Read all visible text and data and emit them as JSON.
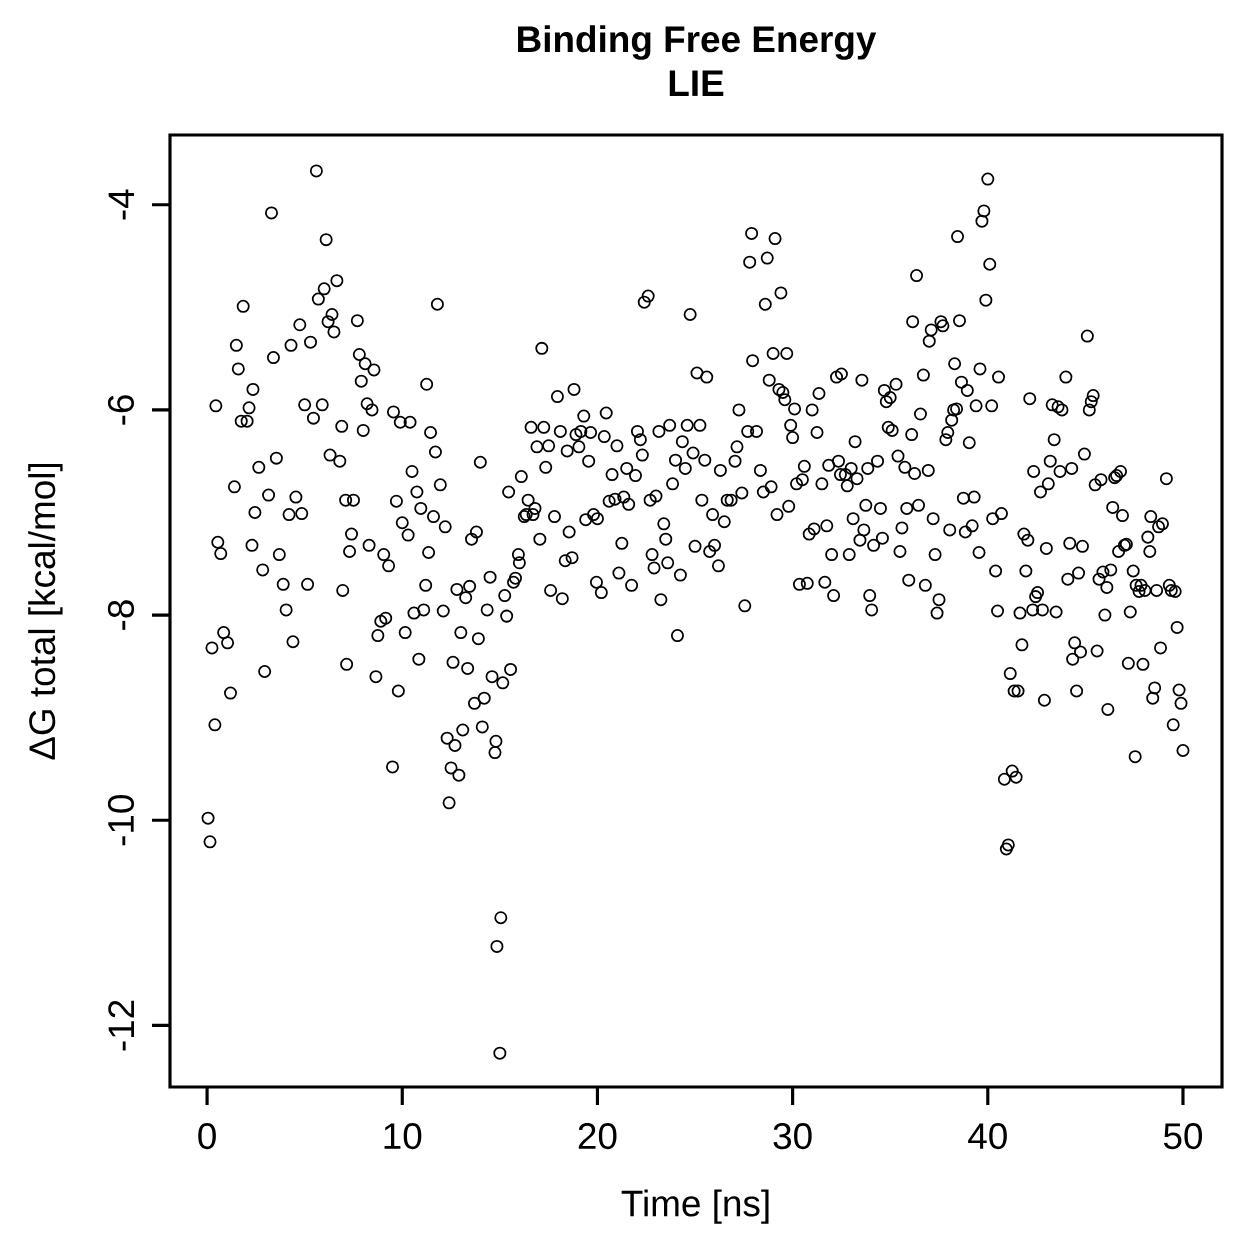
{
  "chart_data": {
    "type": "scatter",
    "title": "Binding Free Energy",
    "subtitle": "LIE",
    "xlabel": "Time [ns]",
    "ylabel": "ΔG total [kcal/mol]",
    "xlim": [
      -1.9,
      52.0
    ],
    "ylim": [
      -12.6,
      -3.32
    ],
    "xticks": [
      0,
      10,
      20,
      30,
      40,
      50
    ],
    "yticks": [
      -12,
      -10,
      -8,
      -6,
      -4
    ],
    "marker": "circle",
    "color": "#000000",
    "x": [
      0.05,
      0.15,
      0.25,
      0.4,
      0.45,
      0.55,
      0.7,
      0.85,
      1.05,
      1.2,
      1.4,
      1.5,
      1.6,
      1.75,
      1.85,
      2.05,
      2.15,
      2.35,
      2.3,
      2.45,
      2.65,
      2.85,
      2.95,
      3.15,
      3.3,
      3.4,
      3.55,
      3.7,
      3.9,
      4.05,
      4.2,
      4.3,
      4.4,
      4.55,
      4.75,
      4.85,
      5.0,
      5.15,
      5.3,
      5.45,
      5.6,
      5.7,
      5.9,
      6.0,
      6.1,
      6.2,
      6.3,
      6.4,
      6.5,
      6.65,
      6.8,
      6.9,
      6.95,
      7.1,
      7.15,
      7.3,
      7.4,
      7.5,
      7.7,
      7.8,
      7.9,
      8.0,
      8.1,
      8.2,
      8.3,
      8.45,
      8.55,
      8.65,
      8.75,
      8.9,
      9.05,
      9.15,
      9.3,
      9.5,
      9.55,
      9.7,
      9.8,
      9.9,
      10.0,
      10.15,
      10.3,
      10.4,
      10.5,
      10.6,
      10.75,
      10.85,
      10.95,
      11.1,
      11.2,
      11.25,
      11.35,
      11.45,
      11.6,
      11.7,
      11.8,
      11.95,
      12.1,
      12.2,
      12.3,
      12.4,
      12.5,
      12.6,
      12.7,
      12.8,
      12.9,
      13.0,
      13.1,
      13.25,
      13.35,
      13.45,
      13.55,
      13.7,
      13.8,
      13.9,
      14.0,
      14.1,
      14.2,
      14.35,
      14.5,
      14.6,
      14.75,
      14.8,
      14.85,
      15.0,
      15.05,
      15.15,
      15.25,
      15.35,
      15.45,
      15.55,
      15.7,
      15.8,
      15.95,
      16.0,
      16.1,
      16.25,
      16.35,
      16.45,
      16.6,
      16.7,
      16.8,
      16.9,
      17.05,
      17.15,
      17.25,
      17.35,
      17.5,
      17.6,
      17.8,
      17.95,
      18.1,
      18.2,
      18.35,
      18.45,
      18.55,
      18.7,
      18.8,
      18.9,
      19.05,
      19.15,
      19.3,
      19.4,
      19.55,
      19.65,
      19.8,
      19.95,
      20.0,
      20.2,
      20.35,
      20.45,
      20.6,
      20.75,
      20.9,
      21.0,
      21.1,
      21.25,
      21.35,
      21.5,
      21.6,
      21.75,
      21.95,
      22.05,
      22.2,
      22.3,
      22.4,
      22.6,
      22.7,
      22.8,
      22.9,
      23.0,
      23.15,
      23.25,
      23.4,
      23.5,
      23.6,
      23.7,
      23.85,
      24.0,
      24.1,
      24.25,
      24.35,
      24.5,
      24.6,
      24.75,
      24.9,
      25.0,
      25.1,
      25.25,
      25.35,
      25.5,
      25.6,
      25.75,
      25.9,
      26.0,
      26.2,
      26.3,
      26.5,
      26.65,
      26.85,
      27.05,
      27.15,
      27.25,
      27.4,
      27.55,
      27.7,
      27.8,
      27.9,
      27.95,
      28.15,
      28.35,
      28.5,
      28.6,
      28.7,
      28.8,
      28.9,
      29.0,
      29.1,
      29.2,
      29.3,
      29.4,
      29.5,
      29.6,
      29.7,
      29.8,
      29.9,
      30.0,
      30.1,
      30.2,
      30.35,
      30.5,
      30.6,
      30.75,
      30.85,
      31.0,
      31.1,
      31.25,
      31.35,
      31.5,
      31.65,
      31.75,
      31.85,
      32.0,
      32.1,
      32.25,
      32.35,
      32.45,
      32.5,
      32.7,
      32.8,
      32.9,
      33.0,
      33.1,
      33.2,
      33.3,
      33.45,
      33.55,
      33.65,
      33.75,
      33.85,
      33.95,
      34.05,
      34.15,
      34.35,
      34.5,
      34.6,
      34.7,
      34.8,
      34.9,
      35.0,
      35.1,
      35.3,
      35.4,
      35.5,
      35.6,
      35.75,
      35.85,
      35.95,
      36.1,
      36.15,
      36.25,
      36.35,
      36.45,
      36.55,
      36.7,
      36.8,
      36.95,
      37.0,
      37.1,
      37.2,
      37.3,
      37.4,
      37.5,
      37.6,
      37.7,
      37.85,
      37.95,
      38.05,
      38.15,
      38.25,
      38.3,
      38.4,
      38.45,
      38.55,
      38.65,
      38.75,
      38.85,
      38.95,
      39.05,
      39.2,
      39.3,
      39.4,
      39.55,
      39.6,
      39.7,
      39.8,
      39.9,
      40.0,
      40.1,
      40.2,
      40.25,
      40.4,
      40.5,
      40.55,
      40.7,
      40.85,
      40.95,
      41.05,
      41.15,
      41.25,
      41.35,
      41.45,
      41.55,
      41.65,
      41.75,
      41.85,
      41.95,
      42.05,
      42.15,
      42.3,
      42.35,
      42.45,
      42.55,
      42.7,
      42.8,
      42.9,
      43.0,
      43.1,
      43.2,
      43.3,
      43.4,
      43.5,
      43.6,
      43.7,
      43.8,
      44.0,
      44.1,
      44.2,
      44.3,
      44.35,
      44.45,
      44.55,
      44.65,
      44.75,
      44.85,
      44.95,
      45.1,
      45.2,
      45.3,
      45.4,
      45.5,
      45.6,
      45.7,
      45.8,
      45.9,
      46.0,
      46.1,
      46.15,
      46.3,
      46.4,
      46.5,
      46.6,
      46.7,
      46.8,
      46.9,
      47.0,
      47.1,
      47.2,
      47.3,
      47.45,
      47.55,
      47.6,
      47.75,
      47.85,
      47.95,
      48.05,
      48.2,
      48.3,
      48.35,
      48.45,
      48.55,
      48.65,
      48.75,
      48.85,
      48.95,
      49.15,
      49.3,
      49.4,
      49.5,
      49.6,
      49.7,
      49.8,
      49.9,
      50.0
    ],
    "values": [
      -9.98,
      -10.21,
      -8.32,
      -9.07,
      -5.96,
      -7.29,
      -7.4,
      -8.17,
      -8.27,
      -8.76,
      -6.75,
      -5.37,
      -5.6,
      -6.11,
      -4.99,
      -6.11,
      -5.98,
      -5.8,
      -7.32,
      -7.0,
      -6.56,
      -7.56,
      -8.55,
      -6.83,
      -4.08,
      -5.49,
      -6.47,
      -7.41,
      -7.7,
      -7.95,
      -7.02,
      -5.37,
      -8.26,
      -6.85,
      -5.17,
      -7.01,
      -5.95,
      -7.7,
      -5.34,
      -6.08,
      -3.67,
      -4.92,
      -5.95,
      -4.82,
      -4.34,
      -5.14,
      -6.44,
      -5.07,
      -5.24,
      -4.74,
      -6.5,
      -6.16,
      -7.76,
      -6.88,
      -8.48,
      -7.38,
      -7.21,
      -6.88,
      -5.13,
      -5.46,
      -5.72,
      -6.2,
      -5.55,
      -5.94,
      -7.32,
      -6.0,
      -5.61,
      -8.6,
      -8.2,
      -8.06,
      -7.41,
      -8.03,
      -7.52,
      -9.48,
      -6.02,
      -6.89,
      -8.74,
      -6.12,
      -7.1,
      -8.17,
      -7.22,
      -6.12,
      -6.6,
      -7.98,
      -6.8,
      -8.43,
      -6.96,
      -7.95,
      -7.71,
      -5.75,
      -7.39,
      -6.22,
      -7.04,
      -6.41,
      -4.97,
      -6.73,
      -7.96,
      -7.14,
      -9.2,
      -9.83,
      -9.49,
      -8.46,
      -9.27,
      -7.75,
      -9.56,
      -8.17,
      -9.12,
      -7.83,
      -8.52,
      -7.72,
      -7.26,
      -8.86,
      -7.19,
      -8.23,
      -6.51,
      -9.09,
      -8.81,
      -7.95,
      -7.63,
      -8.6,
      -9.34,
      -9.23,
      -11.23,
      -12.27,
      -10.95,
      -8.66,
      -7.81,
      -8.01,
      -6.8,
      -8.53,
      -7.68,
      -7.64,
      -7.41,
      -7.49,
      -6.65,
      -7.04,
      -7.02,
      -6.88,
      -6.17,
      -7.02,
      -6.96,
      -6.36,
      -7.26,
      -5.4,
      -6.17,
      -6.56,
      -6.35,
      -7.76,
      -7.04,
      -5.87,
      -6.21,
      -7.84,
      -7.47,
      -6.4,
      -7.19,
      -7.44,
      -5.8,
      -6.24,
      -6.36,
      -6.21,
      -6.06,
      -7.07,
      -6.5,
      -6.22,
      -7.02,
      -7.68,
      -7.06,
      -7.78,
      -6.26,
      -6.03,
      -6.89,
      -6.63,
      -6.87,
      -6.35,
      -7.59,
      -7.3,
      -6.85,
      -6.57,
      -6.92,
      -7.71,
      -6.64,
      -6.21,
      -6.29,
      -6.44,
      -4.95,
      -4.89,
      -6.88,
      -7.41,
      -7.54,
      -6.84,
      -6.21,
      -7.85,
      -7.11,
      -7.26,
      -7.49,
      -6.15,
      -6.72,
      -6.49,
      -8.2,
      -7.61,
      -6.31,
      -6.57,
      -6.15,
      -5.07,
      -6.42,
      -7.33,
      -5.64,
      -6.15,
      -6.88,
      -6.49,
      -5.68,
      -7.38,
      -7.02,
      -7.32,
      -7.52,
      -6.59,
      -7.09,
      -6.88,
      -6.88,
      -6.5,
      -6.36,
      -6.0,
      -6.81,
      -7.91,
      -6.21,
      -4.56,
      -4.28,
      -5.52,
      -6.21,
      -6.59,
      -6.8,
      -4.97,
      -4.52,
      -5.71,
      -6.75,
      -5.45,
      -4.33,
      -7.02,
      -5.8,
      -4.86,
      -5.83,
      -5.9,
      -5.45,
      -6.94,
      -6.15,
      -6.27,
      -5.99,
      -6.72,
      -7.7,
      -6.68,
      -6.55,
      -7.69,
      -7.21,
      -6.0,
      -7.16,
      -6.22,
      -5.84,
      -6.72,
      -7.68,
      -7.13,
      -6.54,
      -7.41,
      -7.81,
      -5.68,
      -6.5,
      -6.63,
      -5.65,
      -6.63,
      -6.74,
      -7.41,
      -6.57,
      -7.06,
      -6.31,
      -6.67,
      -7.27,
      -5.71,
      -7.17,
      -6.93,
      -6.57,
      -7.81,
      -7.95,
      -7.32,
      -6.5,
      -6.96,
      -7.25,
      -5.81,
      -5.92,
      -6.17,
      -5.88,
      -6.2,
      -5.75,
      -6.45,
      -7.38,
      -7.15,
      -6.56,
      -6.96,
      -7.66,
      -6.24,
      -5.14,
      -6.62,
      -4.69,
      -6.93,
      -6.04,
      -5.66,
      -7.71,
      -6.59,
      -5.33,
      -5.22,
      -7.06,
      -7.41,
      -7.98,
      -7.85,
      -5.14,
      -5.18,
      -6.29,
      -6.22,
      -7.17,
      -6.1,
      -6.0,
      -5.55,
      -5.99,
      -4.31,
      -5.13,
      -5.73,
      -6.86,
      -7.19,
      -5.81,
      -6.32,
      -7.13,
      -6.85,
      -5.96,
      -7.39,
      -5.6,
      -4.16,
      -4.06,
      -4.93,
      -3.75,
      -4.58,
      -5.96,
      -7.06,
      -7.57,
      -7.96,
      -5.68,
      -7.01,
      -9.6,
      -10.28,
      -10.24,
      -8.57,
      -9.52,
      -8.74,
      -9.58,
      -8.74,
      -7.98,
      -8.29,
      -7.21,
      -7.57,
      -7.27,
      -5.89,
      -7.95,
      -6.6,
      -7.82,
      -7.78,
      -6.8,
      -7.95,
      -8.83,
      -7.35,
      -6.72,
      -6.5,
      -5.95,
      -6.29,
      -7.97,
      -5.97,
      -6.6,
      -6.0,
      -5.68,
      -7.65,
      -7.3,
      -6.57,
      -8.43,
      -8.27,
      -8.74,
      -7.59,
      -8.36,
      -7.33,
      -6.43,
      -5.28,
      -6.0,
      -5.92,
      -5.86,
      -6.73,
      -8.35,
      -7.65,
      -6.68,
      -7.58,
      -8.0,
      -7.73,
      -8.92,
      -7.56,
      -6.95,
      -6.66,
      -6.64,
      -7.38,
      -6.6,
      -7.03,
      -7.32,
      -7.31,
      -8.47,
      -7.97,
      -7.57,
      -9.38,
      -7.71,
      -7.77,
      -7.71,
      -8.48,
      -7.76,
      -7.24,
      -7.38,
      -7.04,
      -8.81,
      -8.71,
      -7.76,
      -7.14,
      -8.32,
      -7.11,
      -6.67,
      -7.71,
      -7.76,
      -9.07,
      -7.77,
      -8.12,
      -8.73,
      -8.86,
      -9.32
    ]
  }
}
